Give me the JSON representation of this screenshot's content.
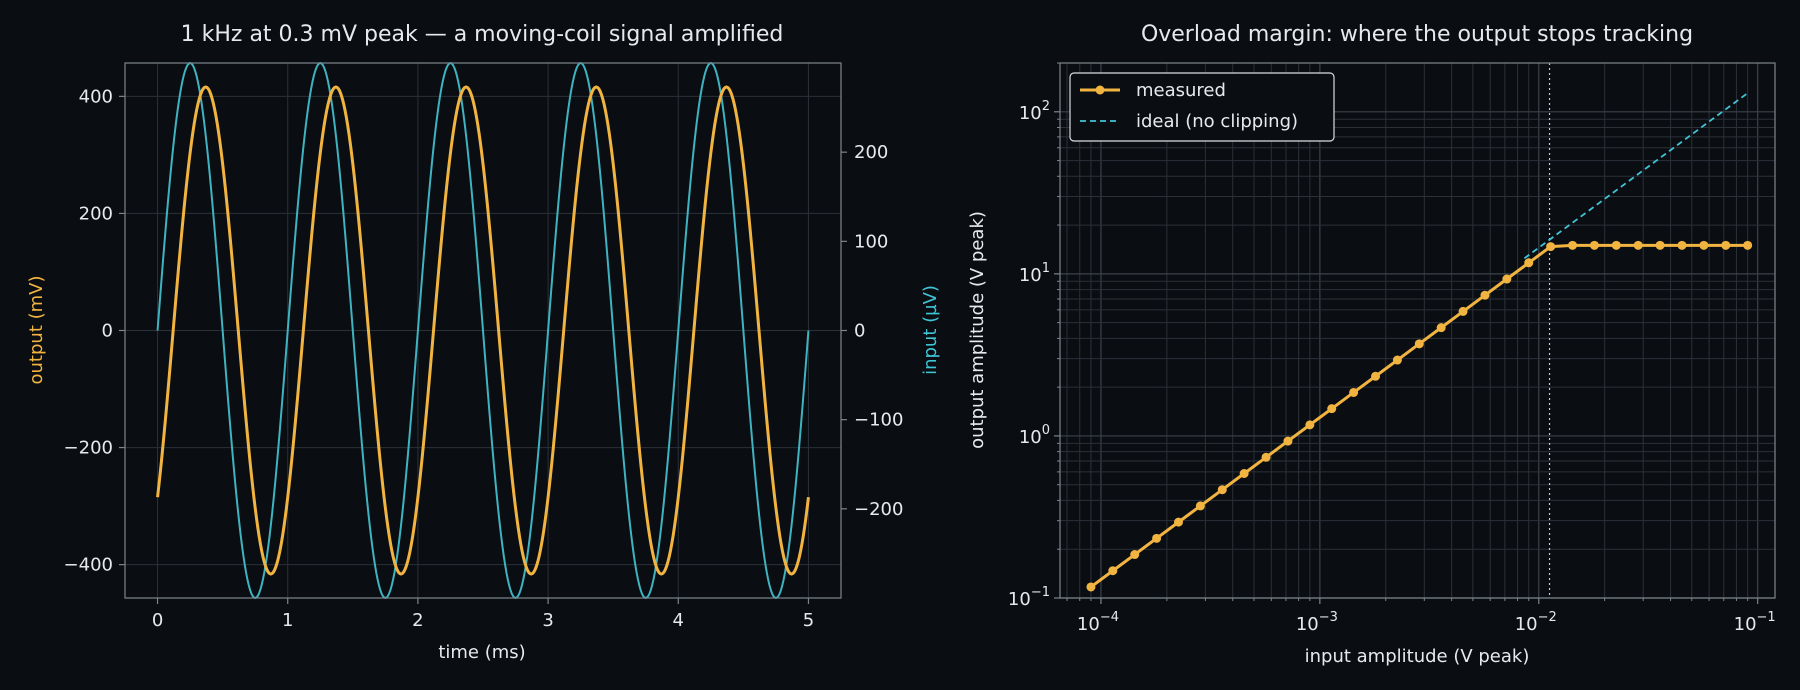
{
  "colors": {
    "background": "#0a0e13",
    "text": "#e6eaee",
    "output": "#f2b441",
    "input": "#3fb3c0",
    "ideal": "#3fc4d6",
    "grid": "#2a3138",
    "spine": "#7d858c"
  },
  "chart_data": [
    {
      "type": "line",
      "title": "1 kHz at 0.3 mV peak — a moving-coil signal amplified",
      "xlabel": "time (ms)",
      "ylabel": "output (mV)",
      "y2label": "input (µV)",
      "xlim": [
        -0.25,
        5.25
      ],
      "ylim": [
        -457,
        457
      ],
      "y2lim": [
        -300,
        300
      ],
      "xticks": [
        "0",
        "1",
        "2",
        "3",
        "4",
        "5"
      ],
      "yticks": [
        "400",
        "200",
        "0",
        "−200",
        "−400"
      ],
      "y2ticks": [
        "200",
        "100",
        "0",
        "−100",
        "−200"
      ],
      "grid": true,
      "series": [
        {
          "axis": "left",
          "frequency_khz": 1,
          "amplitude": 416,
          "phase_ms": 0.12,
          "x_range": [
            0,
            5
          ]
        },
        {
          "axis": "right",
          "frequency_khz": 1,
          "amplitude": 300,
          "phase_ms": 0,
          "x_range": [
            0,
            5
          ]
        }
      ]
    },
    {
      "type": "line",
      "title": "Overload margin: where the output stops tracking",
      "xlabel": "input amplitude (V peak)",
      "ylabel": "output amplitude (V peak)",
      "xscale": "log",
      "yscale": "log",
      "xlim": [
        6.5e-05,
        0.12
      ],
      "ylim": [
        0.1,
        200
      ],
      "xticks": [
        {
          "base": "10",
          "exp": "−4"
        },
        {
          "base": "10",
          "exp": "−3"
        },
        {
          "base": "10",
          "exp": "−2"
        },
        {
          "base": "10",
          "exp": "−1"
        }
      ],
      "yticks": [
        {
          "base": "10",
          "exp": "−1"
        },
        {
          "base": "10",
          "exp": "0"
        },
        {
          "base": "10",
          "exp": "1"
        },
        {
          "base": "10",
          "exp": "2"
        }
      ],
      "grid": true,
      "legend_position": "top-left",
      "clip_input_v": 0.0112,
      "series": [
        {
          "name": "measured",
          "gain": 1300,
          "clip_level_v": 15,
          "n_points": 31,
          "x_range": [
            9e-05,
            0.09
          ]
        },
        {
          "name": "ideal (no clipping)",
          "gain": 1450,
          "x_range": [
            0.0086,
            0.09
          ]
        }
      ]
    }
  ]
}
